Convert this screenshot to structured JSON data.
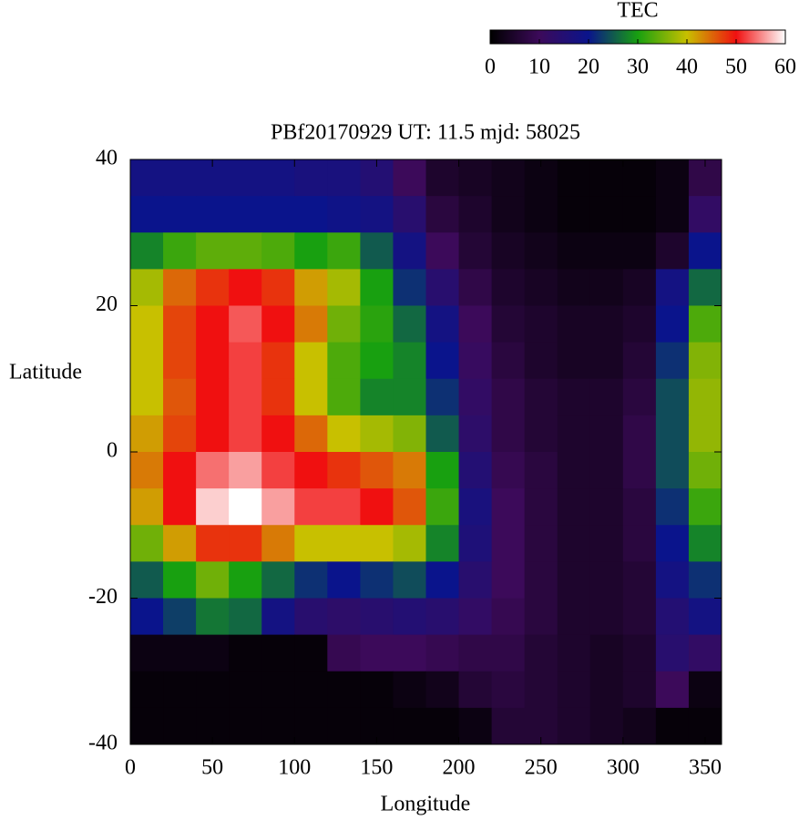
{
  "chart_data": {
    "type": "heatmap",
    "title": "PBf20170929  UT: 11.5  mjd: 58025",
    "x_label": "Longitude",
    "y_label": "Latitude",
    "colorbar_title": "TEC",
    "x": [
      10,
      30,
      50,
      70,
      90,
      110,
      130,
      150,
      170,
      190,
      210,
      230,
      250,
      270,
      290,
      310,
      330,
      350
    ],
    "y": [
      37.5,
      32.5,
      27.5,
      22.5,
      17.5,
      12.5,
      7.5,
      2.5,
      -2.5,
      -7.5,
      -12.5,
      -17.5,
      -22.5,
      -27.5,
      -32.5,
      -37.5
    ],
    "z": [
      [
        18,
        18,
        18,
        18,
        18,
        17,
        17,
        15,
        10,
        5,
        4,
        3,
        2,
        1,
        1,
        1,
        2,
        8
      ],
      [
        20,
        20,
        20,
        20,
        20,
        20,
        19,
        18,
        14,
        7,
        5,
        3,
        2,
        1,
        1,
        1,
        2,
        12
      ],
      [
        28,
        32,
        34,
        34,
        33,
        30,
        32,
        25,
        18,
        10,
        6,
        4,
        3,
        2,
        2,
        2,
        5,
        20
      ],
      [
        38,
        45,
        48,
        50,
        48,
        42,
        38,
        30,
        22,
        14,
        8,
        5,
        4,
        3,
        3,
        4,
        18,
        26
      ],
      [
        40,
        47,
        50,
        53,
        50,
        44,
        35,
        31,
        26,
        18,
        10,
        6,
        5,
        4,
        4,
        5,
        20,
        33
      ],
      [
        40,
        47,
        50,
        52,
        48,
        40,
        33,
        30,
        28,
        20,
        11,
        7,
        5,
        4,
        4,
        6,
        22,
        36
      ],
      [
        40,
        46,
        50,
        52,
        48,
        40,
        33,
        28,
        28,
        22,
        12,
        8,
        6,
        5,
        5,
        7,
        24,
        37
      ],
      [
        42,
        47,
        50,
        52,
        50,
        45,
        40,
        38,
        36,
        25,
        13,
        8,
        6,
        5,
        5,
        8,
        24,
        37
      ],
      [
        44,
        50,
        54,
        56,
        52,
        50,
        48,
        46,
        44,
        30,
        15,
        9,
        7,
        5,
        5,
        8,
        24,
        35
      ],
      [
        42,
        50,
        58,
        60,
        56,
        52,
        52,
        50,
        46,
        32,
        17,
        10,
        7,
        5,
        5,
        7,
        22,
        32
      ],
      [
        35,
        42,
        48,
        48,
        44,
        40,
        40,
        40,
        38,
        28,
        16,
        10,
        7,
        5,
        5,
        7,
        20,
        28
      ],
      [
        25,
        30,
        35,
        30,
        26,
        22,
        20,
        22,
        24,
        20,
        14,
        10,
        7,
        5,
        5,
        6,
        18,
        22
      ],
      [
        20,
        23,
        27,
        26,
        18,
        14,
        13,
        14,
        15,
        14,
        12,
        9,
        7,
        5,
        5,
        6,
        15,
        18
      ],
      [
        2,
        2,
        2,
        1,
        1,
        1,
        9,
        10,
        10,
        9,
        8,
        8,
        6,
        5,
        4,
        5,
        14,
        12
      ],
      [
        1,
        1,
        1,
        1,
        1,
        1,
        1,
        1,
        2,
        3,
        6,
        7,
        6,
        5,
        4,
        5,
        10,
        2
      ],
      [
        1,
        1,
        1,
        1,
        1,
        1,
        1,
        1,
        1,
        1,
        2,
        6,
        6,
        5,
        4,
        3,
        1,
        1
      ]
    ],
    "xlim": [
      0,
      360
    ],
    "xticks": [
      0,
      50,
      100,
      150,
      200,
      250,
      300,
      350
    ],
    "ylim": [
      -40,
      40
    ],
    "yticks": [
      -40,
      -20,
      0,
      20,
      40
    ],
    "clim": [
      0,
      60
    ],
    "cticks": [
      0,
      10,
      20,
      30,
      40,
      50,
      60
    ],
    "colorscale": [
      "#000000",
      "#3c0a5a",
      "#0a148c",
      "#18a010",
      "#c8c000",
      "#f01010",
      "#ffffff"
    ]
  }
}
